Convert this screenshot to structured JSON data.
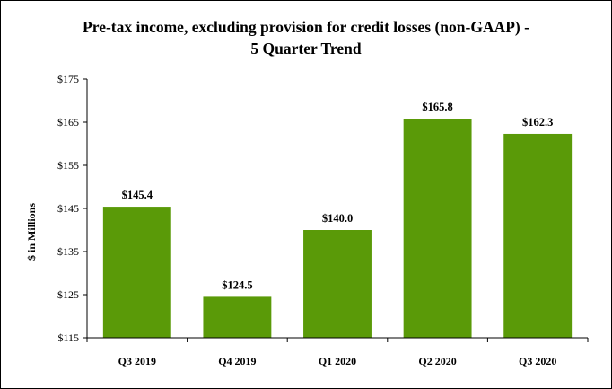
{
  "chart_data": {
    "type": "bar",
    "title_line1": "Pre-tax income, excluding provision for credit losses (non-GAAP) -",
    "title_line2": "5 Quarter Trend",
    "xlabel": "",
    "ylabel": "$ in Millions",
    "categories": [
      "Q3 2019",
      "Q4 2019",
      "Q1 2020",
      "Q2 2020",
      "Q3 2020"
    ],
    "values": [
      145.4,
      124.5,
      140.0,
      165.8,
      162.3
    ],
    "data_labels": [
      "$145.4",
      "$124.5",
      "$140.0",
      "$165.8",
      "$162.3"
    ],
    "ylim": [
      115,
      175
    ],
    "yticks": [
      115,
      125,
      135,
      145,
      155,
      165,
      175
    ],
    "ytick_labels": [
      "$115",
      "$125",
      "$135",
      "$145",
      "$155",
      "$165",
      "$175"
    ],
    "grid": false,
    "legend": "none",
    "bar_color": "#5a9a08",
    "axis_color": "#000000"
  }
}
